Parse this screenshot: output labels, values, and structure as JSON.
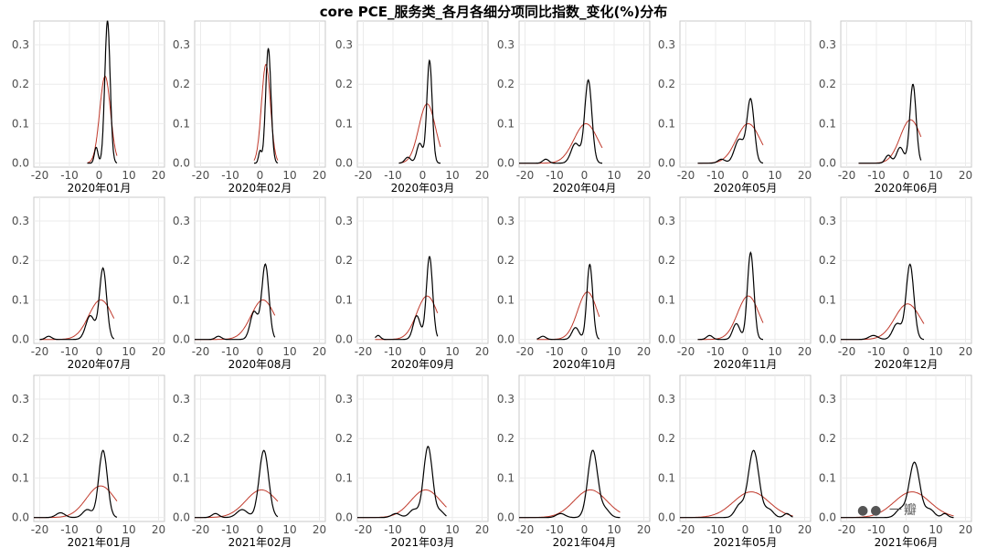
{
  "title": "core PCE_服务类_各月各细分项同比指数_变化(%)分布",
  "watermark_text": "一瓣",
  "colors": {
    "empirical": "#000000",
    "normal": "#c0392b"
  },
  "chart_data": {
    "type": "line",
    "xlim": [
      -22,
      22
    ],
    "ylim": [
      -0.01,
      0.36
    ],
    "x_ticks": [
      -20,
      -10,
      0,
      10,
      20
    ],
    "y_ticks": [
      0.0,
      0.1,
      0.2,
      0.3
    ],
    "y_tick_labels": [
      "0.0",
      "0.1",
      "0.2",
      "0.3"
    ],
    "grid": true,
    "panels": [
      {
        "label": "2020年01月",
        "xmin": -4,
        "xmax": 6,
        "peak": 0.36,
        "mean": 2,
        "sd": 1.8,
        "npeak": 0.22,
        "bumps": [
          [
            -1,
            0.04,
            0.6
          ]
        ]
      },
      {
        "label": "2020年02月",
        "xmin": -2,
        "xmax": 6,
        "peak": 0.29,
        "mean": 2,
        "sd": 1.5,
        "npeak": 0.25,
        "bumps": [
          [
            0,
            0.03,
            0.5
          ]
        ]
      },
      {
        "label": "2020年03月",
        "xmin": -8,
        "xmax": 6,
        "peak": 0.26,
        "mean": 1.5,
        "sd": 2.8,
        "npeak": 0.15,
        "bumps": [
          [
            -5,
            0.015,
            1.0
          ],
          [
            -1,
            0.05,
            1.0
          ]
        ]
      },
      {
        "label": "2020年04月",
        "xmin": -22,
        "xmax": 6,
        "peak": 0.21,
        "mean": 0.5,
        "sd": 4.0,
        "npeak": 0.1,
        "bumps": [
          [
            -13,
            0.01,
            1.0
          ],
          [
            -3,
            0.05,
            1.5
          ]
        ]
      },
      {
        "label": "2020年05月",
        "xmin": -16,
        "xmax": 6,
        "peak": 0.16,
        "mean": 1,
        "sd": 4.0,
        "npeak": 0.1,
        "bumps": [
          [
            -8,
            0.01,
            1.2
          ],
          [
            -2,
            0.06,
            1.6
          ]
        ]
      },
      {
        "label": "2020年06月",
        "xmin": -16,
        "xmax": 5,
        "peak": 0.2,
        "mean": 1.5,
        "sd": 3.5,
        "npeak": 0.11,
        "bumps": [
          [
            -6,
            0.02,
            1.0
          ],
          [
            -2,
            0.04,
            1.2
          ]
        ]
      },
      {
        "label": "2020年07月",
        "xmin": -20,
        "xmax": 5,
        "peak": 0.18,
        "mean": 0.5,
        "sd": 4.0,
        "npeak": 0.1,
        "bumps": [
          [
            -17,
            0.008,
            1.0
          ],
          [
            -3,
            0.06,
            1.5
          ]
        ]
      },
      {
        "label": "2020年08月",
        "xmin": -22,
        "xmax": 5,
        "peak": 0.19,
        "mean": 1,
        "sd": 4.0,
        "npeak": 0.1,
        "bumps": [
          [
            -14,
            0.008,
            1.0
          ],
          [
            -2,
            0.07,
            1.3
          ]
        ]
      },
      {
        "label": "2020年09月",
        "xmin": -16,
        "xmax": 5,
        "peak": 0.21,
        "mean": 1.5,
        "sd": 3.5,
        "npeak": 0.11,
        "bumps": [
          [
            -15,
            0.01,
            0.8
          ],
          [
            -2,
            0.06,
            1.2
          ]
        ]
      },
      {
        "label": "2020年10月",
        "xmin": -16,
        "xmax": 5,
        "peak": 0.19,
        "mean": 1,
        "sd": 3.3,
        "npeak": 0.12,
        "bumps": [
          [
            -14,
            0.008,
            1.0
          ],
          [
            -3,
            0.03,
            1.2
          ]
        ]
      },
      {
        "label": "2020年11月",
        "xmin": -16,
        "xmax": 6,
        "peak": 0.22,
        "mean": 1,
        "sd": 3.6,
        "npeak": 0.11,
        "bumps": [
          [
            -12,
            0.01,
            1.0
          ],
          [
            -3,
            0.04,
            1.2
          ]
        ]
      },
      {
        "label": "2020年12月",
        "xmin": -22,
        "xmax": 6,
        "peak": 0.19,
        "mean": 0.5,
        "sd": 4.3,
        "npeak": 0.09,
        "bumps": [
          [
            -11,
            0.01,
            1.5
          ],
          [
            -3,
            0.04,
            1.5
          ]
        ]
      },
      {
        "label": "2021年01月",
        "xmin": -22,
        "xmax": 6,
        "peak": 0.17,
        "mean": 0.5,
        "sd": 4.8,
        "npeak": 0.08,
        "bumps": [
          [
            -13,
            0.012,
            1.5
          ],
          [
            -4,
            0.02,
            1.5
          ]
        ]
      },
      {
        "label": "2021年02月",
        "xmin": -22,
        "xmax": 6,
        "peak": 0.17,
        "mean": 0.5,
        "sd": 5.3,
        "npeak": 0.07,
        "bumps": [
          [
            -15,
            0.01,
            1.2
          ],
          [
            -6,
            0.02,
            1.8
          ]
        ]
      },
      {
        "label": "2021年03月",
        "xmin": -22,
        "xmax": 8,
        "peak": 0.18,
        "mean": 1,
        "sd": 5.0,
        "npeak": 0.07,
        "bumps": [
          [
            -9,
            0.01,
            1.5
          ],
          [
            -3,
            0.02,
            1.5
          ],
          [
            6,
            0.015,
            1.2
          ]
        ]
      },
      {
        "label": "2021年04月",
        "xmin": -22,
        "xmax": 12,
        "peak": 0.17,
        "mean": 2,
        "sd": 5.5,
        "npeak": 0.07,
        "bumps": [
          [
            -8,
            0.01,
            1.5
          ],
          [
            7,
            0.02,
            1.5
          ]
        ]
      },
      {
        "label": "2021年05月",
        "xmin": -22,
        "xmax": 16,
        "peak": 0.17,
        "mean": 2,
        "sd": 6.0,
        "npeak": 0.065,
        "bumps": [
          [
            -2,
            0.03,
            1.5
          ],
          [
            8,
            0.02,
            1.5
          ],
          [
            14,
            0.01,
            1.0
          ]
        ]
      },
      {
        "label": "2021年06月",
        "xmin": -22,
        "xmax": 16,
        "peak": 0.14,
        "mean": 2,
        "sd": 6.0,
        "npeak": 0.065,
        "bumps": [
          [
            -2,
            0.02,
            1.5
          ],
          [
            8,
            0.02,
            1.5
          ],
          [
            13,
            0.01,
            1.0
          ]
        ]
      }
    ]
  }
}
